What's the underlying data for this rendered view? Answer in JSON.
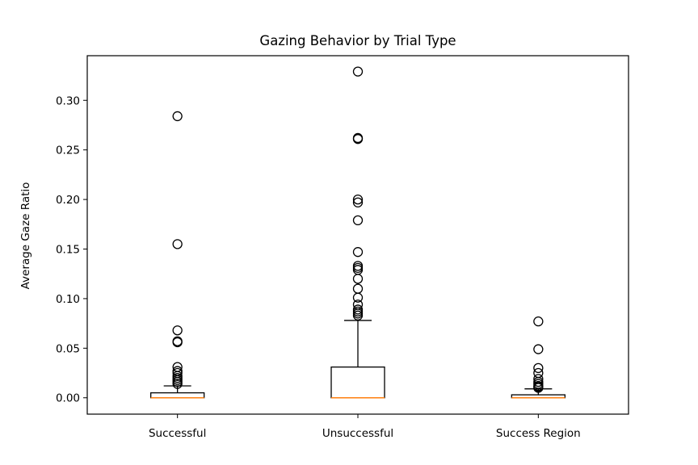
{
  "chart_data": {
    "type": "boxplot",
    "title": "Gazing Behavior by Trial Type",
    "xlabel": "",
    "ylabel": "Average Gaze Ratio",
    "categories": [
      "Successful",
      "Unsuccessful",
      "Success Region"
    ],
    "ylim": [
      -0.0165,
      0.345
    ],
    "yticks": [
      0.0,
      0.05,
      0.1,
      0.15,
      0.2,
      0.25,
      0.3
    ],
    "ytick_labels": [
      "0.00",
      "0.05",
      "0.10",
      "0.15",
      "0.20",
      "0.25",
      "0.30"
    ],
    "grid": false,
    "box_color": "#000000",
    "median_color": "#ff7f0e",
    "series": [
      {
        "category": "Successful",
        "whisker_low": 0.0,
        "q1": 0.0,
        "median": 0.0,
        "q3": 0.005,
        "whisker_high": 0.012,
        "outliers": [
          0.284,
          0.155,
          0.068,
          0.057,
          0.056,
          0.031,
          0.027,
          0.025,
          0.022,
          0.02,
          0.018,
          0.016,
          0.014
        ]
      },
      {
        "category": "Unsuccessful",
        "whisker_low": 0.0,
        "q1": 0.0,
        "median": 0.0,
        "q3": 0.031,
        "whisker_high": 0.078,
        "outliers": [
          0.329,
          0.262,
          0.261,
          0.2,
          0.197,
          0.179,
          0.147,
          0.133,
          0.131,
          0.129,
          0.12,
          0.11,
          0.101,
          0.094,
          0.089,
          0.087,
          0.085,
          0.083
        ]
      },
      {
        "category": "Success Region",
        "whisker_low": 0.0,
        "q1": 0.0,
        "median": 0.0,
        "q3": 0.003,
        "whisker_high": 0.009,
        "outliers": [
          0.077,
          0.049,
          0.03,
          0.025,
          0.019,
          0.016,
          0.014,
          0.012,
          0.011,
          0.01
        ]
      }
    ]
  }
}
